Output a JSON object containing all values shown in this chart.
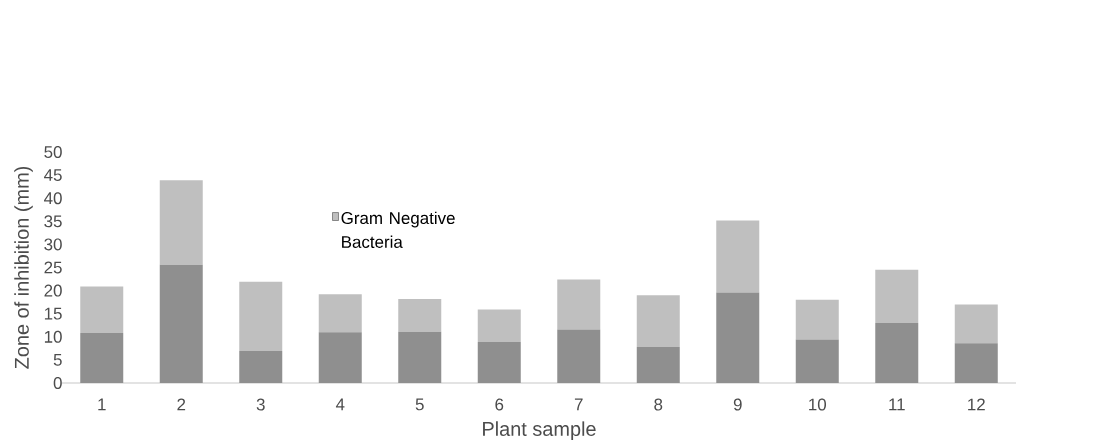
{
  "chart_data": {
    "type": "bar",
    "stacked": true,
    "xlabel": "Plant sample",
    "ylabel": "Zone of inhibition (mm)",
    "categories": [
      "1",
      "2",
      "3",
      "4",
      "5",
      "6",
      "7",
      "8",
      "9",
      "10",
      "11",
      "12"
    ],
    "series": [
      {
        "color": "#8f8f8f",
        "values": [
          10.8,
          25.6,
          6.9,
          11.0,
          11.1,
          8.9,
          11.6,
          7.8,
          19.6,
          9.4,
          13.0,
          8.6
        ]
      },
      {
        "name": "Gram Negative Bacteria",
        "color": "#bfbfbf",
        "values": [
          10.1,
          18.3,
          15.0,
          8.2,
          7.1,
          7.0,
          10.8,
          11.2,
          15.6,
          8.6,
          11.5,
          8.4
        ]
      }
    ],
    "ylim": [
      0,
      50
    ],
    "yticks": [
      0,
      5,
      10,
      15,
      20,
      25,
      30,
      35,
      40,
      45,
      50
    ],
    "legend": "top left",
    "grid": false
  }
}
